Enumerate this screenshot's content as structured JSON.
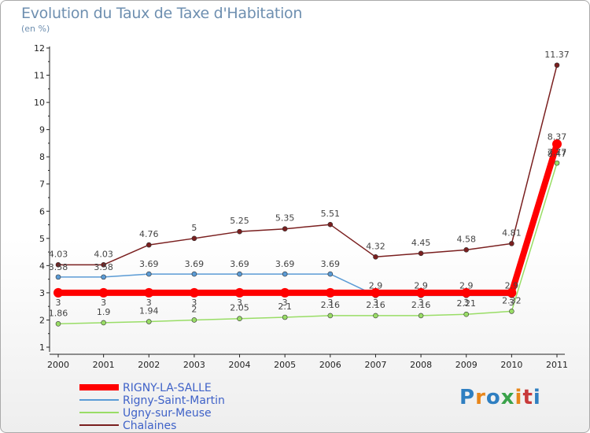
{
  "title": "Evolution du Taux de Taxe d'Habitation",
  "unit_label": "(en %)",
  "logo": {
    "text": "Proxiti",
    "colors": [
      "#2f7fc1",
      "#e8861a",
      "#2f7fc1",
      "#3aa24a",
      "#e8861a",
      "#c83a3a",
      "#2f7fc1"
    ]
  },
  "chart_data": {
    "type": "line",
    "title": "Evolution du Taux de Taxe d'Habitation",
    "ylabel": "(en %)",
    "xlabel": "",
    "x": [
      "2000",
      "2001",
      "2002",
      "2003",
      "2004",
      "2005",
      "2006",
      "2007",
      "2008",
      "2009",
      "2010",
      "2011"
    ],
    "yticks": [
      "1",
      "2",
      "3",
      "4",
      "5",
      "6",
      "7",
      "8",
      "9",
      "10",
      "11",
      "12"
    ],
    "ylim": [
      1,
      12
    ],
    "grid": false,
    "legend_position": "bottom-left",
    "series": [
      {
        "name": "RIGNY-LA-SALLE",
        "color": "#ff0000",
        "values": [
          3,
          3,
          3,
          3,
          3,
          3,
          3,
          3,
          3,
          3,
          3,
          8.47
        ],
        "labels": [
          "3",
          "3",
          "3",
          "3",
          "3",
          "3",
          "3",
          "3",
          "3",
          "3",
          "3",
          "8.47"
        ]
      },
      {
        "name": "Rigny-Saint-Martin",
        "color": "#5b9bd5",
        "values": [
          3.58,
          3.58,
          3.69,
          3.69,
          3.69,
          3.69,
          3.69,
          2.9,
          2.9,
          2.9,
          2.9,
          8.37
        ],
        "labels": [
          "3.58",
          "3.58",
          "3.69",
          "3.69",
          "3.69",
          "3.69",
          "3.69",
          "2.9",
          "2.9",
          "2.9",
          "2.9",
          "8.37"
        ]
      },
      {
        "name": "Ugny-sur-Meuse",
        "color": "#99dd66",
        "values": [
          1.86,
          1.9,
          1.94,
          2,
          2.05,
          2.1,
          2.16,
          2.16,
          2.16,
          2.21,
          2.32,
          7.77
        ],
        "labels": [
          "1.86",
          "1.9",
          "1.94",
          "2",
          "2.05",
          "2.1",
          "2.16",
          "2.16",
          "2.16",
          "2.21",
          "2.32",
          "7.77"
        ]
      },
      {
        "name": "Chalaines",
        "color": "#7a1f1f",
        "values": [
          4.03,
          4.03,
          4.76,
          5,
          5.25,
          5.35,
          5.51,
          4.32,
          4.45,
          4.58,
          4.81,
          11.37
        ],
        "labels": [
          "4.03",
          "4.03",
          "4.76",
          "5",
          "5.25",
          "5.35",
          "5.51",
          "4.32",
          "4.45",
          "4.58",
          "4.81",
          "11.37"
        ]
      }
    ]
  }
}
